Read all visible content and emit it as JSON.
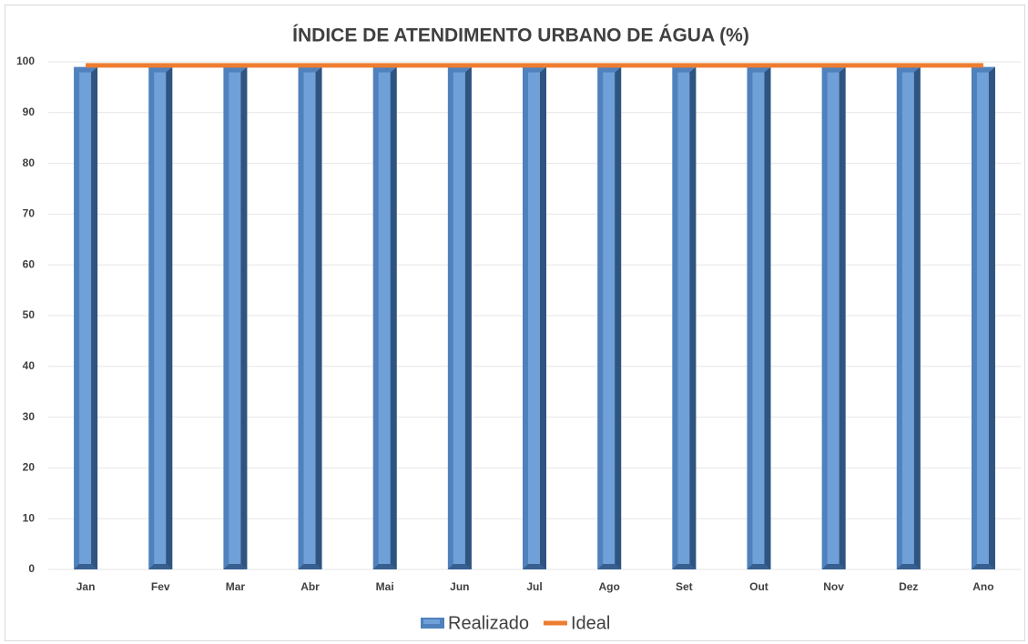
{
  "chart_data": {
    "type": "bar",
    "title": "ÍNDICE DE ATENDIMENTO URBANO DE ÁGUA (%)",
    "categories": [
      "Jan",
      "Fev",
      "Mar",
      "Abr",
      "Mai",
      "Jun",
      "Jul",
      "Ago",
      "Set",
      "Out",
      "Nov",
      "Dez",
      "Ano"
    ],
    "series": [
      {
        "name": "Realizado",
        "type": "bar",
        "color": "#4f81bd",
        "values": [
          99,
          99,
          99,
          99,
          99,
          99,
          99,
          99,
          99,
          99,
          99,
          99,
          99
        ]
      },
      {
        "name": "Ideal",
        "type": "line",
        "color": "#ed7d31",
        "values": [
          99.3,
          99.3,
          99.3,
          99.3,
          99.3,
          99.3,
          99.3,
          99.3,
          99.3,
          99.3,
          99.3,
          99.3,
          99.3
        ]
      }
    ],
    "ylim": [
      0,
      100
    ],
    "yticks": [
      0,
      10,
      20,
      30,
      40,
      50,
      60,
      70,
      80,
      90,
      100
    ],
    "grid": true,
    "legend": "bottom"
  }
}
